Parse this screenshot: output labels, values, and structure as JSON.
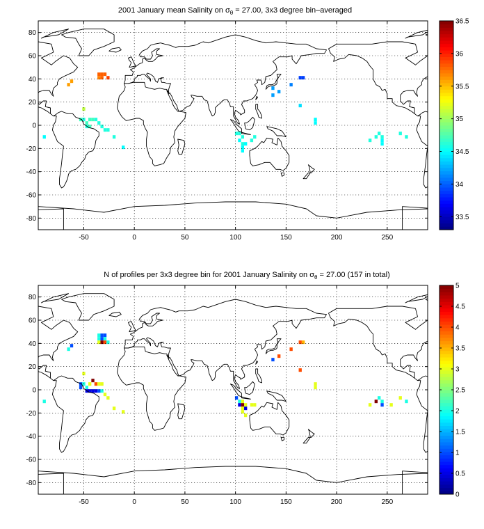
{
  "figure": {
    "panels": [
      {
        "title_main": "2001 January mean Salinity on σ",
        "title_sub": "θ",
        "title_tail": " = 27.00, 3x3 degree bin–averaged",
        "colorbar_ticks": [
          "33.5",
          "34",
          "34.5",
          "35",
          "35.5",
          "36",
          "36.5"
        ]
      },
      {
        "title_main": "N of profiles per 3x3 degree bin for 2001 January Salinity on σ",
        "title_sub": "θ",
        "title_tail": " = 27.00 (157 in total)",
        "colorbar_ticks": [
          "0",
          "0.5",
          "1",
          "1.5",
          "2",
          "2.5",
          "3",
          "3.5",
          "4",
          "4.5",
          "5"
        ]
      }
    ]
  },
  "chart_data": [
    {
      "type": "heatmap",
      "title": "2001 January mean Salinity on σθ = 27.00, 3x3 degree bin–averaged",
      "xlabel": "",
      "ylabel": "",
      "xlim": [
        -95,
        290
      ],
      "ylim": [
        -90,
        90
      ],
      "xticks": [
        -50,
        0,
        50,
        100,
        150,
        200,
        250
      ],
      "yticks": [
        -80,
        -60,
        -40,
        -20,
        0,
        20,
        40,
        60,
        80
      ],
      "grid": true,
      "colorbar": {
        "min": 33.3,
        "max": 36.5,
        "ticks": [
          33.5,
          34,
          34.5,
          35,
          35.5,
          36,
          36.5
        ],
        "colormap": "jet"
      },
      "bin_size_deg": 3,
      "bins": [
        {
          "lon": -35,
          "lat": 44,
          "value": 35.8
        },
        {
          "lon": -32,
          "lat": 44,
          "value": 35.8
        },
        {
          "lon": -29,
          "lat": 44,
          "value": 35.8
        },
        {
          "lon": -35,
          "lat": 41,
          "value": 35.7
        },
        {
          "lon": -32,
          "lat": 41,
          "value": 35.8
        },
        {
          "lon": -26,
          "lat": 41,
          "value": 35.9
        },
        {
          "lon": -62,
          "lat": 38,
          "value": 35.6
        },
        {
          "lon": -65,
          "lat": 35,
          "value": 35.6
        },
        {
          "lon": -50,
          "lat": 14,
          "value": 35.1
        },
        {
          "lon": -53,
          "lat": 5,
          "value": 34.7
        },
        {
          "lon": -50,
          "lat": 5,
          "value": 34.6
        },
        {
          "lon": -44,
          "lat": 5,
          "value": 34.7
        },
        {
          "lon": -41,
          "lat": 5,
          "value": 34.7
        },
        {
          "lon": -38,
          "lat": 5,
          "value": 34.6
        },
        {
          "lon": -47,
          "lat": 2,
          "value": 34.7
        },
        {
          "lon": -35,
          "lat": 2,
          "value": 34.6
        },
        {
          "lon": -47,
          "lat": -1,
          "value": 34.6
        },
        {
          "lon": -44,
          "lat": -1,
          "value": 34.7
        },
        {
          "lon": -32,
          "lat": -1,
          "value": 34.6
        },
        {
          "lon": -29,
          "lat": -4,
          "value": 34.6
        },
        {
          "lon": -26,
          "lat": -4,
          "value": 34.6
        },
        {
          "lon": -20,
          "lat": -10,
          "value": 34.6
        },
        {
          "lon": -11,
          "lat": -19,
          "value": 34.5
        },
        {
          "lon": -89,
          "lat": -10,
          "value": 34.5
        },
        {
          "lon": 164,
          "lat": 41,
          "value": 33.9
        },
        {
          "lon": 167,
          "lat": 41,
          "value": 33.9
        },
        {
          "lon": 155,
          "lat": 35,
          "value": 34.1
        },
        {
          "lon": 137,
          "lat": 32,
          "value": 34.2
        },
        {
          "lon": 143,
          "lat": 29,
          "value": 34.2
        },
        {
          "lon": 137,
          "lat": 26,
          "value": 34.2
        },
        {
          "lon": 164,
          "lat": 17,
          "value": 34.4
        },
        {
          "lon": 179,
          "lat": 5,
          "value": 34.5
        },
        {
          "lon": 179,
          "lat": 2,
          "value": 34.5
        },
        {
          "lon": 101,
          "lat": -7,
          "value": 34.6
        },
        {
          "lon": 104,
          "lat": -7,
          "value": 34.6
        },
        {
          "lon": 107,
          "lat": -10,
          "value": 34.6
        },
        {
          "lon": 119,
          "lat": -10,
          "value": 34.6
        },
        {
          "lon": 104,
          "lat": -13,
          "value": 34.5
        },
        {
          "lon": 116,
          "lat": -13,
          "value": 34.6
        },
        {
          "lon": 107,
          "lat": -16,
          "value": 34.6
        },
        {
          "lon": 110,
          "lat": -16,
          "value": 34.5
        },
        {
          "lon": 107,
          "lat": -19,
          "value": 34.5
        },
        {
          "lon": 107,
          "lat": -22,
          "value": 34.5
        },
        {
          "lon": 242,
          "lat": -7,
          "value": 34.6
        },
        {
          "lon": 239,
          "lat": -10,
          "value": 34.6
        },
        {
          "lon": 245,
          "lat": -10,
          "value": 34.6
        },
        {
          "lon": 233,
          "lat": -13,
          "value": 34.6
        },
        {
          "lon": 245,
          "lat": -13,
          "value": 34.5
        },
        {
          "lon": 263,
          "lat": -7,
          "value": 34.6
        },
        {
          "lon": 269,
          "lat": -10,
          "value": 34.6
        },
        {
          "lon": 245,
          "lat": -16,
          "value": 34.5
        }
      ]
    },
    {
      "type": "heatmap",
      "title": "N of profiles per 3x3 degree bin for 2001 January Salinity on σθ = 27.00 (157 in total)",
      "xlabel": "",
      "ylabel": "",
      "xlim": [
        -95,
        290
      ],
      "ylim": [
        -90,
        90
      ],
      "xticks": [
        -50,
        0,
        50,
        100,
        150,
        200,
        250
      ],
      "yticks": [
        -80,
        -60,
        -40,
        -20,
        0,
        20,
        40,
        60,
        80
      ],
      "grid": true,
      "colorbar": {
        "min": 0,
        "max": 5,
        "ticks": [
          0,
          0.5,
          1,
          1.5,
          2,
          2.5,
          3,
          3.5,
          4,
          4.5,
          5
        ],
        "colormap": "jet"
      },
      "bin_size_deg": 3,
      "total_profiles": 157,
      "bins": [
        {
          "lon": -35,
          "lat": 47,
          "value": 2
        },
        {
          "lon": -32,
          "lat": 47,
          "value": 1
        },
        {
          "lon": -29,
          "lat": 47,
          "value": 1
        },
        {
          "lon": -35,
          "lat": 44,
          "value": 2
        },
        {
          "lon": -32,
          "lat": 44,
          "value": 1
        },
        {
          "lon": -29,
          "lat": 44,
          "value": 2
        },
        {
          "lon": -35,
          "lat": 41,
          "value": 3
        },
        {
          "lon": -32,
          "lat": 41,
          "value": 5
        },
        {
          "lon": -29,
          "lat": 41,
          "value": 4
        },
        {
          "lon": -26,
          "lat": 41,
          "value": 2
        },
        {
          "lon": -62,
          "lat": 38,
          "value": 1
        },
        {
          "lon": -65,
          "lat": 35,
          "value": 2
        },
        {
          "lon": -50,
          "lat": 14,
          "value": 3
        },
        {
          "lon": -53,
          "lat": 5,
          "value": 1
        },
        {
          "lon": -50,
          "lat": 5,
          "value": 2
        },
        {
          "lon": -44,
          "lat": 5,
          "value": 3
        },
        {
          "lon": -41,
          "lat": 8,
          "value": 5
        },
        {
          "lon": -38,
          "lat": 5,
          "value": 4
        },
        {
          "lon": -35,
          "lat": 5,
          "value": 3
        },
        {
          "lon": -32,
          "lat": 5,
          "value": 3
        },
        {
          "lon": -47,
          "lat": 2,
          "value": 2
        },
        {
          "lon": -53,
          "lat": 2,
          "value": 1
        },
        {
          "lon": -47,
          "lat": -1,
          "value": 0.5
        },
        {
          "lon": -44,
          "lat": -1,
          "value": 0.5
        },
        {
          "lon": -41,
          "lat": -1,
          "value": 0.5
        },
        {
          "lon": -38,
          "lat": -1,
          "value": 0.5
        },
        {
          "lon": -35,
          "lat": -1,
          "value": 1
        },
        {
          "lon": -32,
          "lat": -1,
          "value": 2
        },
        {
          "lon": -29,
          "lat": -4,
          "value": 3
        },
        {
          "lon": -26,
          "lat": -7,
          "value": 3
        },
        {
          "lon": -20,
          "lat": -16,
          "value": 3
        },
        {
          "lon": -11,
          "lat": -19,
          "value": 3
        },
        {
          "lon": -89,
          "lat": -10,
          "value": 2
        },
        {
          "lon": 164,
          "lat": 41,
          "value": 4
        },
        {
          "lon": 167,
          "lat": 41,
          "value": 3.5
        },
        {
          "lon": 155,
          "lat": 35,
          "value": 4
        },
        {
          "lon": 143,
          "lat": 29,
          "value": 4
        },
        {
          "lon": 137,
          "lat": 26,
          "value": 1
        },
        {
          "lon": 164,
          "lat": 17,
          "value": 4
        },
        {
          "lon": 179,
          "lat": 5,
          "value": 3
        },
        {
          "lon": 179,
          "lat": 2,
          "value": 3
        },
        {
          "lon": 101,
          "lat": -7,
          "value": 1
        },
        {
          "lon": 104,
          "lat": -10,
          "value": 2
        },
        {
          "lon": 107,
          "lat": -10,
          "value": 3
        },
        {
          "lon": 104,
          "lat": -13,
          "value": 0.5
        },
        {
          "lon": 107,
          "lat": -13,
          "value": 5
        },
        {
          "lon": 110,
          "lat": -13,
          "value": 3
        },
        {
          "lon": 116,
          "lat": -13,
          "value": 3
        },
        {
          "lon": 119,
          "lat": -13,
          "value": 3
        },
        {
          "lon": 107,
          "lat": -16,
          "value": 3
        },
        {
          "lon": 107,
          "lat": -19,
          "value": 3
        },
        {
          "lon": 110,
          "lat": -22,
          "value": 3
        },
        {
          "lon": 110,
          "lat": -16,
          "value": 0.5
        },
        {
          "lon": 242,
          "lat": -7,
          "value": 2
        },
        {
          "lon": 239,
          "lat": -10,
          "value": 5
        },
        {
          "lon": 245,
          "lat": -10,
          "value": 2
        },
        {
          "lon": 245,
          "lat": -13,
          "value": 1
        },
        {
          "lon": 233,
          "lat": -13,
          "value": 3
        },
        {
          "lon": 254,
          "lat": -13,
          "value": 3
        },
        {
          "lon": 263,
          "lat": -7,
          "value": 3
        },
        {
          "lon": 269,
          "lat": -10,
          "value": 2
        }
      ]
    }
  ]
}
